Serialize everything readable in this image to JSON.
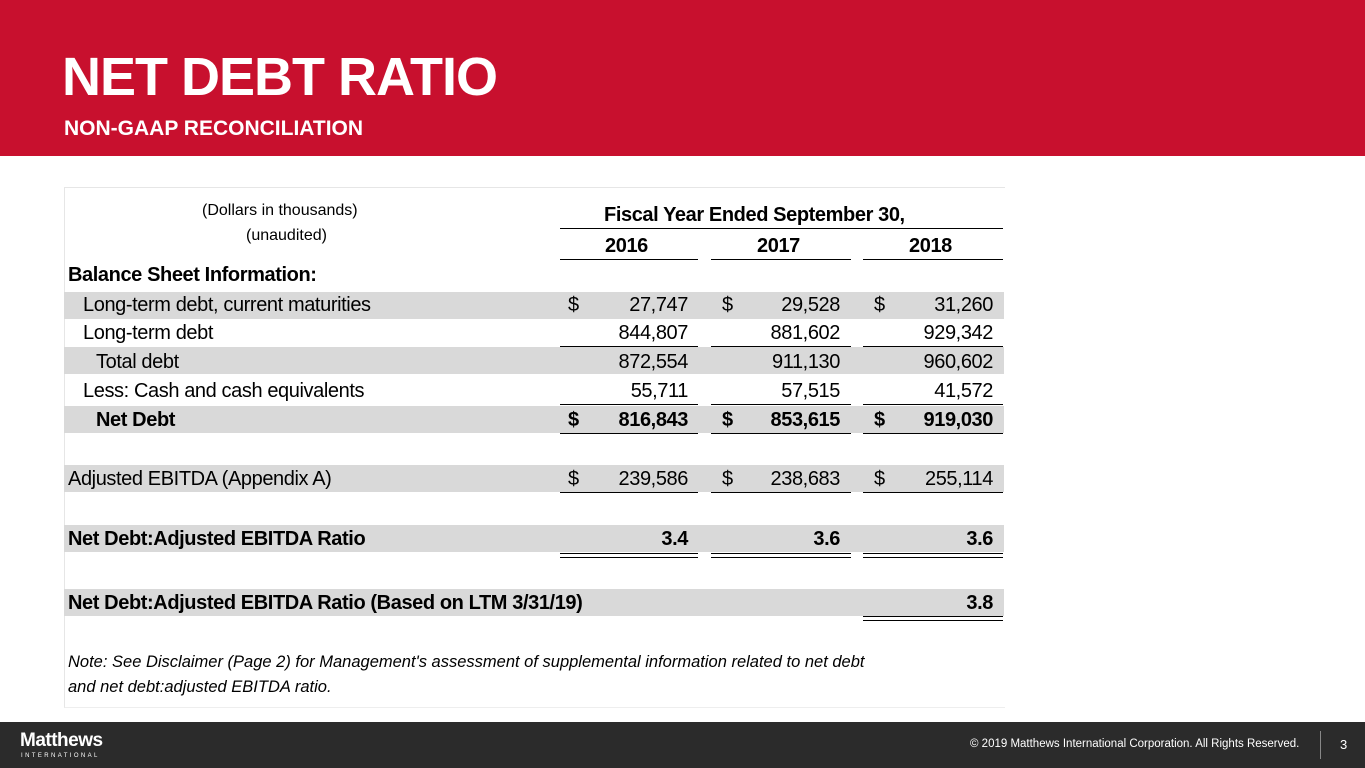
{
  "header": {
    "title": "NET DEBT RATIO",
    "subtitle": "NON-GAAP RECONCILIATION"
  },
  "table": {
    "units_line1": "(Dollars in thousands)",
    "units_line2": "(unaudited)",
    "period_header": "Fiscal Year Ended September 30,",
    "years": [
      "2016",
      "2017",
      "2018"
    ],
    "section_label": "Balance Sheet Information:",
    "rows": {
      "ltd_current": {
        "label": "Long-term debt, current maturities",
        "values": [
          "27,747",
          "29,528",
          "31,260"
        ]
      },
      "ltd": {
        "label": "Long-term debt",
        "values": [
          "844,807",
          "881,602",
          "929,342"
        ]
      },
      "total_debt": {
        "label": "Total debt",
        "values": [
          "872,554",
          "911,130",
          "960,602"
        ]
      },
      "cash": {
        "label": "Less: Cash and cash equivalents",
        "values": [
          "55,711",
          "57,515",
          "41,572"
        ]
      },
      "net_debt": {
        "label": "Net Debt",
        "values": [
          "816,843",
          "853,615",
          "919,030"
        ]
      },
      "ebitda": {
        "label": "Adjusted EBITDA (Appendix A)",
        "values": [
          "239,586",
          "238,683",
          "255,114"
        ]
      },
      "ratio": {
        "label": "Net Debt:Adjusted EBITDA Ratio",
        "values": [
          "3.4",
          "3.6",
          "3.6"
        ]
      },
      "ratio_ltm": {
        "label": "Net Debt:Adjusted EBITDA Ratio (Based on LTM 3/31/19)",
        "value": "3.8"
      }
    },
    "currency_symbol": "$"
  },
  "note": {
    "line1": "Note: See Disclaimer (Page 2) for Management's assessment of supplemental information related to net debt",
    "line2": "and net debt:adjusted EBITDA ratio."
  },
  "footer": {
    "logo_main": "Matthews",
    "logo_sub": "INTERNATIONAL",
    "copyright": "© 2019 Matthews International Corporation. All Rights Reserved.",
    "page_number": "3"
  },
  "colors": {
    "brand_red": "#c8102e",
    "footer_dark": "#2b2b2b",
    "row_band": "#d9d9d9"
  }
}
